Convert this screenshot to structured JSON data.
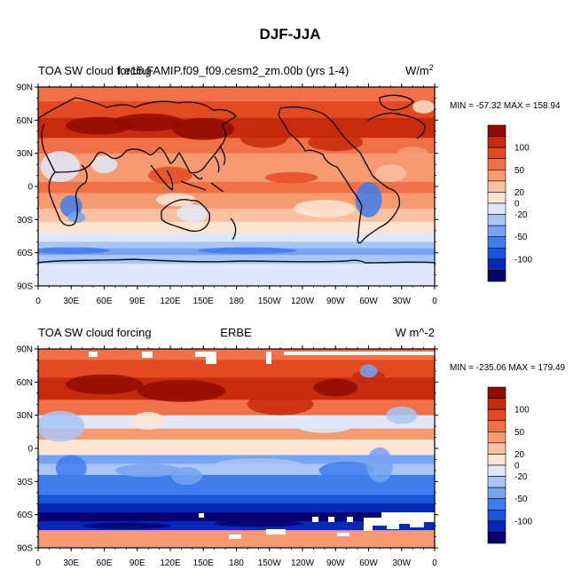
{
  "figure_title": "DJF-JJA",
  "colorbar_colors": [
    "#08006e",
    "#0727b4",
    "#1a56d8",
    "#3f7cec",
    "#76a3f2",
    "#a9c6f6",
    "#dfe9fb",
    "#fde5d4",
    "#fbc0a0",
    "#f69a72",
    "#f07048",
    "#e44a22",
    "#c72a0c",
    "#8f0c00"
  ],
  "chart_data": [
    {
      "type": "heatmap",
      "left_label": "TOA SW cloud forcing",
      "center_label": "f.e15.FAMIP.f09_f09.cesm2_zm.00b (yrs 1-4)",
      "units": "W/m",
      "units_exp": "2",
      "min_max": "MIN = -57.32 MAX = 158.94",
      "colorbar_ticks": [
        "100",
        "50",
        "20",
        "0",
        "-20",
        "-50",
        "-100"
      ],
      "lat_ticks": [
        "90N",
        "60N",
        "30N",
        "0",
        "30S",
        "60S",
        "90S"
      ],
      "lon_ticks": [
        "0",
        "30E",
        "60E",
        "90E",
        "120E",
        "150E",
        "180",
        "150W",
        "120W",
        "90W",
        "60W",
        "30W",
        "0"
      ],
      "lat_range": [
        -90,
        90
      ],
      "lon_range": [
        0,
        360
      ]
    },
    {
      "type": "heatmap",
      "left_label": "TOA SW cloud forcing",
      "center_label": "ERBE",
      "units": "W m^-2",
      "units_exp": "",
      "min_max": "MIN = -235.06 MAX = 179.49",
      "colorbar_ticks": [
        "100",
        "50",
        "20",
        "0",
        "-20",
        "-50",
        "-100"
      ],
      "lat_ticks": [
        "90N",
        "60N",
        "30N",
        "0",
        "30S",
        "60S",
        "90S"
      ],
      "lon_ticks": [
        "0",
        "30E",
        "60E",
        "90E",
        "120E",
        "150E",
        "180",
        "150W",
        "120W",
        "90W",
        "60W",
        "30W",
        "0"
      ],
      "lat_range": [
        -90,
        90
      ],
      "lon_range": [
        0,
        360
      ]
    }
  ]
}
